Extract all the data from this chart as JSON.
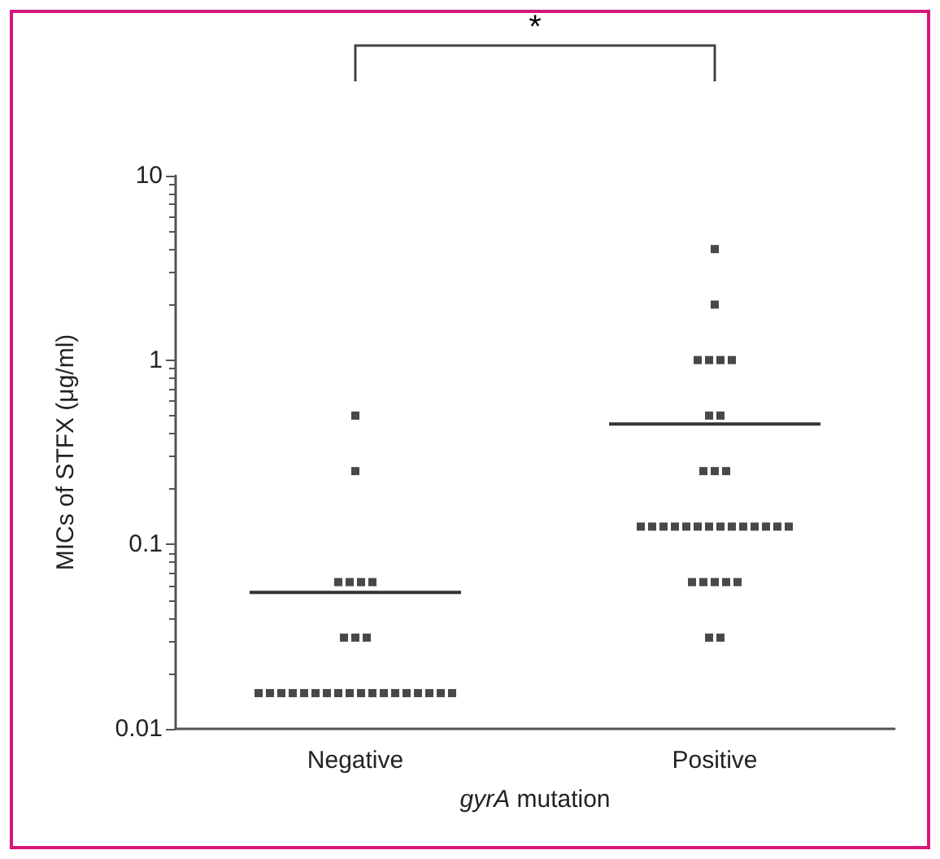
{
  "chart_data": {
    "type": "scatter",
    "categories": [
      "Negative",
      "Positive"
    ],
    "xlabel": "gyrA mutation",
    "ylabel": "MICs of STFX (μg/ml)",
    "log": "y",
    "ylim": [
      0.01,
      10
    ],
    "yticks": [
      0.01,
      0.1,
      1,
      10
    ],
    "grid": false,
    "marker": "square",
    "annotations": [
      "*"
    ],
    "series": [
      {
        "color": "#1a1a1a",
        "x": [
          "Negative",
          "Negative",
          "Negative",
          "Negative",
          "Negative",
          "Negative",
          "Negative",
          "Negative",
          "Negative",
          "Negative",
          "Negative",
          "Negative",
          "Negative",
          "Negative",
          "Negative",
          "Negative",
          "Negative",
          "Negative",
          "Negative",
          "Negative",
          "Negative",
          "Negative",
          "Negative",
          "Negative",
          "Negative",
          "Negative",
          "Negative"
        ],
        "values": [
          0.5,
          0.25,
          0.0625,
          0.0625,
          0.0625,
          0.0625,
          0.03125,
          0.03125,
          0.03125,
          0.015625,
          0.015625,
          0.015625,
          0.015625,
          0.015625,
          0.015625,
          0.015625,
          0.015625,
          0.015625,
          0.015625,
          0.015625,
          0.015625,
          0.015625,
          0.015625,
          0.015625,
          0.015625,
          0.015625,
          0.015625
        ]
      },
      {
        "color": "#1a1a1a",
        "x": [
          "Positive",
          "Positive",
          "Positive",
          "Positive",
          "Positive",
          "Positive",
          "Positive",
          "Positive",
          "Positive",
          "Positive",
          "Positive",
          "Positive",
          "Positive",
          "Positive",
          "Positive",
          "Positive",
          "Positive",
          "Positive",
          "Positive",
          "Positive",
          "Positive",
          "Positive",
          "Positive",
          "Positive",
          "Positive",
          "Positive",
          "Positive",
          "Positive",
          "Positive",
          "Positive",
          "Positive",
          "Positive"
        ],
        "values": [
          4,
          2,
          1,
          1,
          1,
          1,
          0.5,
          0.5,
          0.25,
          0.25,
          0.25,
          0.125,
          0.125,
          0.125,
          0.125,
          0.125,
          0.125,
          0.125,
          0.125,
          0.125,
          0.125,
          0.125,
          0.125,
          0.125,
          0.125,
          0.0625,
          0.0625,
          0.0625,
          0.0625,
          0.0625,
          0.03125,
          0.03125
        ]
      },
      {
        "type": "box",
        "color": "#333333",
        "boxes": [
          {
            "low": 0.055,
            "q1": 0.055,
            "median": 0.055,
            "q3": 0.055,
            "high": 0.055
          },
          {
            "low": 0.45,
            "q1": 0.45,
            "median": 0.45,
            "q3": 0.45,
            "high": 0.45
          }
        ]
      }
    ]
  }
}
